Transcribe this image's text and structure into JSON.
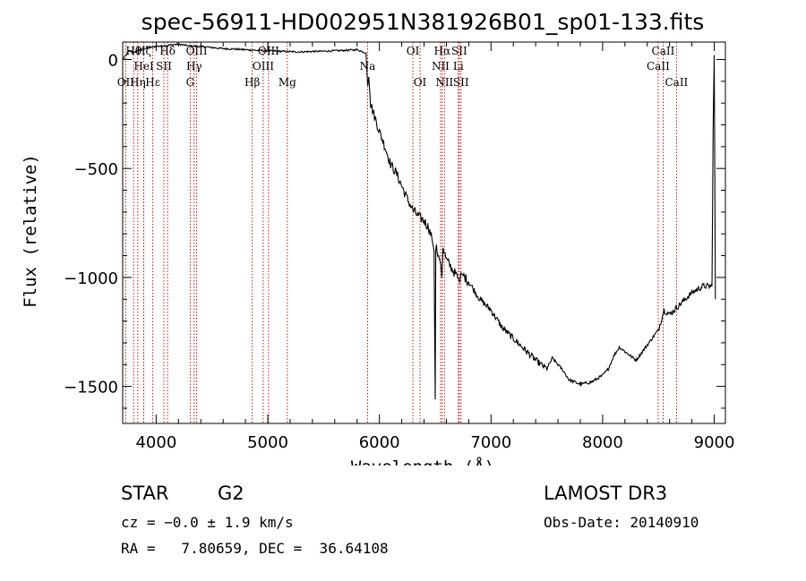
{
  "chart_data": {
    "type": "line",
    "title": "spec-56911-HD002951N381926B01_sp01-133.fits",
    "xlabel": "Wavelength (Å)",
    "ylabel": "Flux (relative)",
    "xlim": [
      3700,
      9100
    ],
    "ylim": [
      -1670,
      80
    ],
    "x_ticks": [
      4000,
      5000,
      6000,
      7000,
      8000,
      9000
    ],
    "x_tick_labels": [
      "4000",
      "5000",
      "6000",
      "7000",
      "8000",
      "9000"
    ],
    "y_ticks": [
      0,
      -500,
      -1000,
      -1500
    ],
    "y_tick_labels": [
      "0",
      "−500",
      "−1000",
      "−1500"
    ],
    "grid": false,
    "series": [
      {
        "name": "flux",
        "x": [
          3700,
          3760,
          3800,
          3850,
          3900,
          3950,
          4000,
          4100,
          4200,
          4300,
          4400,
          4500,
          4600,
          4700,
          4800,
          4900,
          5000,
          5100,
          5200,
          5300,
          5400,
          5500,
          5600,
          5700,
          5800,
          5880,
          5895,
          5905,
          5920,
          5950,
          6000,
          6050,
          6100,
          6150,
          6200,
          6250,
          6300,
          6350,
          6400,
          6440,
          6470,
          6490,
          6500,
          6505,
          6530,
          6550,
          6560,
          6570,
          6600,
          6650,
          6700,
          6720,
          6730,
          6750,
          6800,
          6850,
          6900,
          7000,
          7100,
          7200,
          7300,
          7400,
          7500,
          7550,
          7600,
          7650,
          7700,
          7800,
          7900,
          8000,
          8050,
          8100,
          8150,
          8200,
          8300,
          8400,
          8500,
          8550,
          8600,
          8700,
          8800,
          8900,
          8980,
          8990,
          9000,
          9010
        ],
        "y": [
          0,
          40,
          30,
          45,
          50,
          55,
          60,
          65,
          70,
          62,
          60,
          55,
          50,
          48,
          45,
          42,
          40,
          38,
          36,
          35,
          37,
          38,
          40,
          42,
          45,
          30,
          -120,
          -80,
          -200,
          -250,
          -330,
          -400,
          -480,
          -520,
          -580,
          -640,
          -690,
          -720,
          -740,
          -770,
          -820,
          -880,
          -1560,
          -860,
          -900,
          -940,
          -1000,
          -860,
          -920,
          -960,
          -1000,
          -1020,
          -980,
          -990,
          -1020,
          -1060,
          -1100,
          -1150,
          -1230,
          -1280,
          -1330,
          -1380,
          -1420,
          -1370,
          -1400,
          -1430,
          -1470,
          -1490,
          -1480,
          -1450,
          -1420,
          -1360,
          -1320,
          -1340,
          -1380,
          -1310,
          -1240,
          -1150,
          -1170,
          -1120,
          -1070,
          -1040,
          -1040,
          -320,
          20,
          -1100
        ]
      }
    ],
    "spectral_lines": [
      {
        "label": "OII",
        "x": 3727,
        "row": 3
      },
      {
        "label": "Hθ",
        "x": 3798,
        "row": 1
      },
      {
        "label": "Hη",
        "x": 3835,
        "row": 3
      },
      {
        "label": "HeI",
        "x": 3889,
        "row": 2
      },
      {
        "label": "Hζ",
        "x": 3889,
        "row": 1
      },
      {
        "label": "Hε",
        "x": 3970,
        "row": 3
      },
      {
        "label": "SII",
        "x": 4069,
        "row": 2
      },
      {
        "label": "Hδ",
        "x": 4102,
        "row": 1
      },
      {
        "label": "G",
        "x": 4305,
        "row": 3
      },
      {
        "label": "Hγ",
        "x": 4340,
        "row": 2
      },
      {
        "label": "OIII",
        "x": 4363,
        "row": 1
      },
      {
        "label": "Hβ",
        "x": 4861,
        "row": 3
      },
      {
        "label": "OIII",
        "x": 4959,
        "row": 2
      },
      {
        "label": "OIII",
        "x": 5007,
        "row": 1
      },
      {
        "label": "Mg",
        "x": 5175,
        "row": 3
      },
      {
        "label": "Na",
        "x": 5894,
        "row": 2
      },
      {
        "label": "OI",
        "x": 6300,
        "row": 1
      },
      {
        "label": "OI",
        "x": 6364,
        "row": 3
      },
      {
        "label": "NII",
        "x": 6548,
        "row": 2
      },
      {
        "label": "Hα",
        "x": 6563,
        "row": 1
      },
      {
        "label": "NII",
        "x": 6583,
        "row": 3
      },
      {
        "label": "Li",
        "x": 6707,
        "row": 2
      },
      {
        "label": "SII",
        "x": 6716,
        "row": 1
      },
      {
        "label": "SII",
        "x": 6731,
        "row": 3
      },
      {
        "label": "CaII",
        "x": 8498,
        "row": 2
      },
      {
        "label": "CaII",
        "x": 8542,
        "row": 1
      },
      {
        "label": "CaII",
        "x": 8662,
        "row": 3
      }
    ],
    "line_color": "#000000",
    "marker_color": "#b00000"
  },
  "info": {
    "class": "STAR",
    "subclass": "G2",
    "cz": "cz = −0.0 ± 1.9 km/s",
    "radec": "RA =   7.80659, DEC =  36.64108",
    "survey": "LAMOST DR3",
    "obs_date": "Obs-Date: 20140910"
  }
}
